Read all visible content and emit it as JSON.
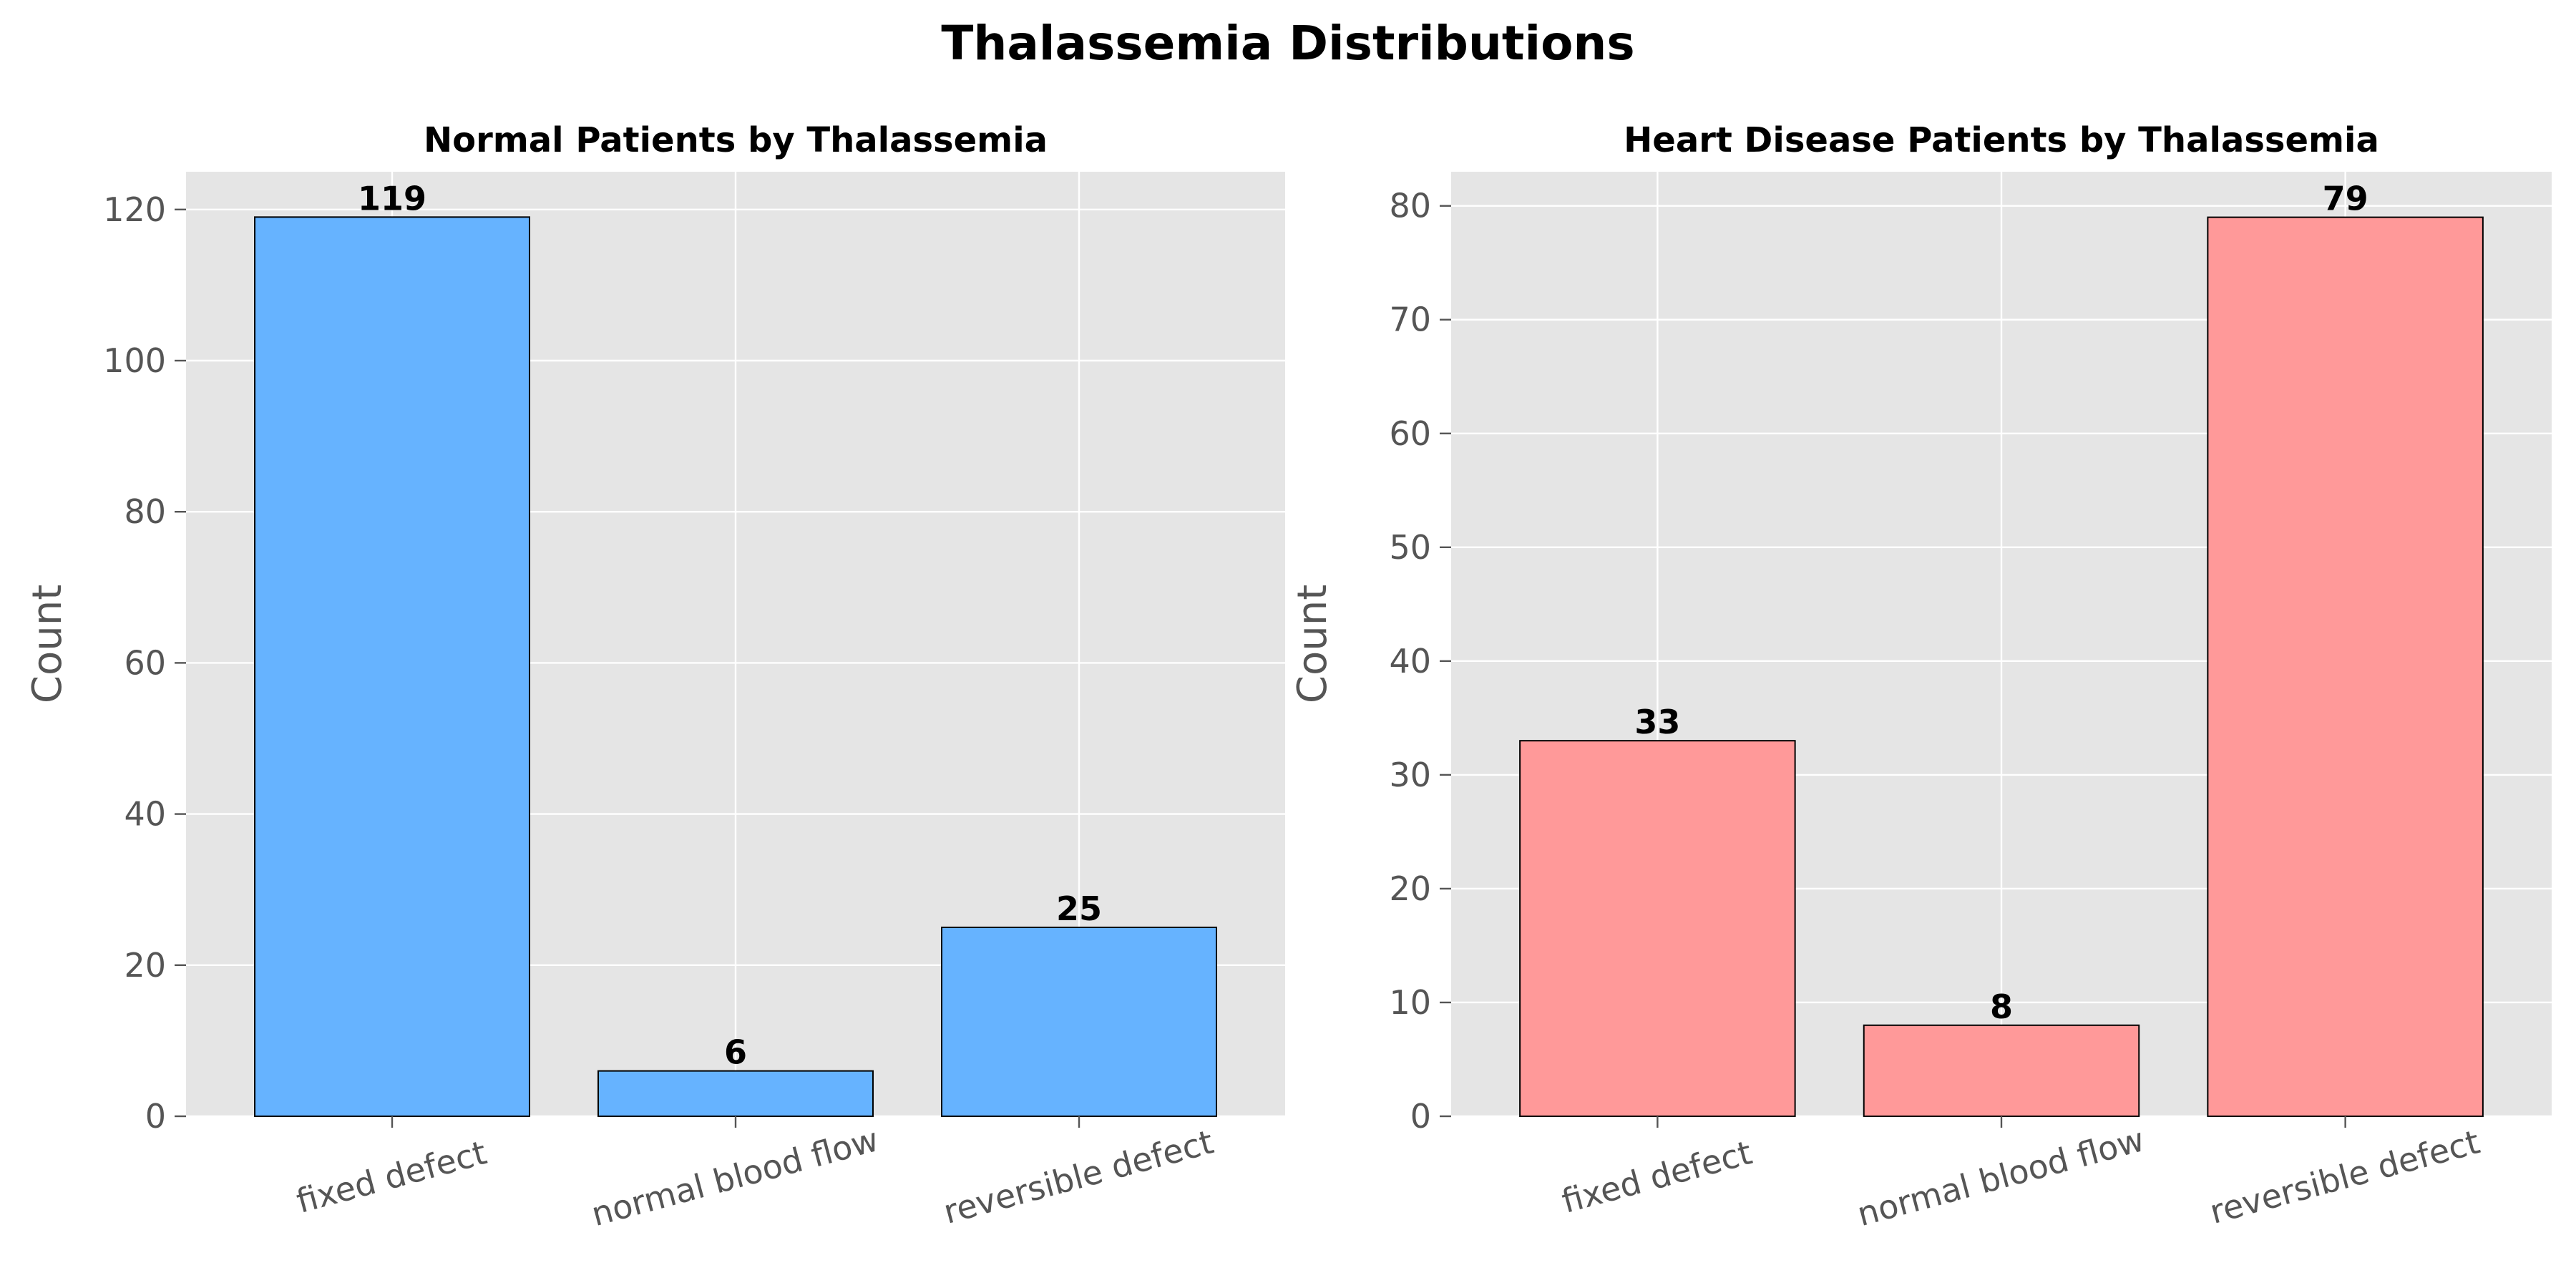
{
  "figure": {
    "title": "Thalassemia Distributions"
  },
  "chart_data": [
    {
      "type": "bar",
      "title": "Normal Patients by Thalassemia",
      "xlabel": "",
      "ylabel": "Count",
      "categories": [
        "fixed defect",
        "normal blood flow",
        "reversible defect"
      ],
      "values": [
        119,
        6,
        25
      ],
      "ylim": [
        0,
        125
      ],
      "yticks": [
        0,
        20,
        40,
        60,
        80,
        100,
        120
      ],
      "bar_color": "#66b3ff",
      "grid": true
    },
    {
      "type": "bar",
      "title": "Heart Disease Patients by Thalassemia",
      "xlabel": "",
      "ylabel": "Count",
      "categories": [
        "fixed defect",
        "normal blood flow",
        "reversible defect"
      ],
      "values": [
        33,
        8,
        79
      ],
      "ylim": [
        0,
        83
      ],
      "yticks": [
        0,
        10,
        20,
        30,
        40,
        50,
        60,
        70,
        80
      ],
      "bar_color": "#ff9999",
      "grid": true
    }
  ]
}
